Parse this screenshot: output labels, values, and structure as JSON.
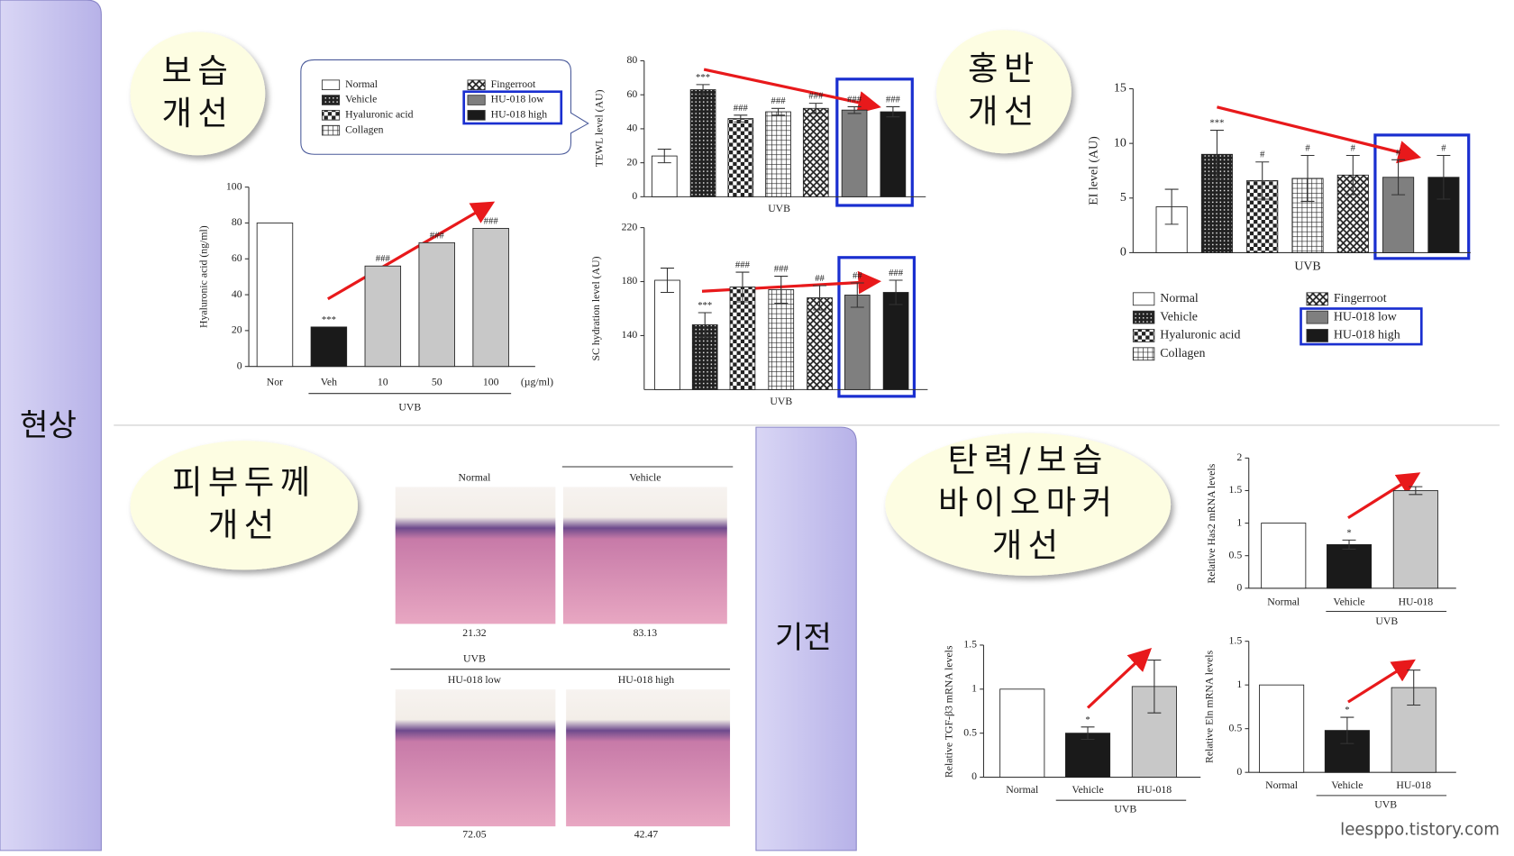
{
  "side_labels": [
    "현상",
    "기전"
  ],
  "bubbles": [
    {
      "lines": [
        "보습",
        "개선"
      ]
    },
    {
      "lines": [
        "홍반",
        "개선"
      ]
    },
    {
      "lines": [
        "피부두께",
        "개선"
      ]
    },
    {
      "lines": [
        "탄력/보습",
        "바이오마커",
        "개선"
      ]
    }
  ],
  "legends": [
    {
      "items": [
        {
          "name": "Normal",
          "fill": "white"
        },
        {
          "name": "Vehicle",
          "fill": "dense"
        },
        {
          "name": "Hyaluronic acid",
          "fill": "check"
        },
        {
          "name": "Collagen",
          "fill": "grid"
        },
        {
          "name": "Fingerroot",
          "fill": "cross"
        },
        {
          "name": "HU-018 low",
          "fill": "#7f7f7f"
        },
        {
          "name": "HU-018 high",
          "fill": "#1a1a1a"
        }
      ]
    },
    {
      "items": [
        {
          "name": "Normal",
          "fill": "white"
        },
        {
          "name": "Vehicle",
          "fill": "dense"
        },
        {
          "name": "Hyaluronic acid",
          "fill": "check"
        },
        {
          "name": "Collagen",
          "fill": "grid"
        },
        {
          "name": "Fingerroot",
          "fill": "cross"
        },
        {
          "name": "HU-018 low",
          "fill": "#7f7f7f"
        },
        {
          "name": "HU-018 high",
          "fill": "#1a1a1a"
        }
      ]
    }
  ],
  "histology": {
    "labels": [
      "Normal",
      "Vehicle",
      "UVB",
      "HU-018 low",
      "HU-018 high"
    ],
    "scores": [
      "21.32",
      "83.13",
      "72.05",
      "42.47"
    ]
  },
  "watermark": "leesppo.tistory.com",
  "chart_data": [
    {
      "type": "bar",
      "y_label": "Hyaluronic acid (ng/ml)",
      "x_label": "UVB",
      "x_unit": "(µg/ml)",
      "categories": [
        "Nor",
        "Veh",
        "10",
        "50",
        "100"
      ],
      "values": [
        80,
        22,
        56,
        69,
        77
      ],
      "errors": null,
      "annotations": [
        null,
        "***",
        "###",
        "###",
        "###"
      ],
      "fills": [
        "white",
        "#1a1a1a",
        "#c8c8c8",
        "#c8c8c8",
        "#c8c8c8"
      ],
      "ylim": [
        0,
        100
      ],
      "yticks": [
        0,
        20,
        40,
        60,
        80,
        100
      ]
    },
    {
      "type": "bar",
      "y_label": "TEWL level (AU)",
      "x_label": "UVB",
      "categories": [
        null,
        null,
        null,
        null,
        null,
        null,
        null
      ],
      "values": [
        24,
        63,
        46,
        50,
        52,
        51,
        50
      ],
      "errors": [
        4,
        3,
        2,
        2,
        3,
        2,
        3
      ],
      "annotations": [
        null,
        "***",
        "###",
        "###",
        "###",
        "###",
        "###"
      ],
      "fills": [
        "white",
        "dense",
        "check",
        "grid",
        "cross",
        "#7f7f7f",
        "#1a1a1a"
      ],
      "ylim": [
        0,
        80
      ],
      "yticks": [
        0,
        20,
        40,
        60,
        80
      ]
    },
    {
      "type": "bar",
      "y_label": "SC hydration level (AU)",
      "x_label": "UVB",
      "categories": [
        null,
        null,
        null,
        null,
        null,
        null,
        null
      ],
      "values": [
        181,
        148,
        176,
        174,
        168,
        170,
        172
      ],
      "errors": [
        9,
        9,
        11,
        10,
        9,
        9,
        9
      ],
      "annotations": [
        null,
        "***",
        "###",
        "###",
        "##",
        "##",
        "###"
      ],
      "fills": [
        "white",
        "dense",
        "check",
        "grid",
        "cross",
        "#7f7f7f",
        "#1a1a1a"
      ],
      "ylim": [
        100,
        220
      ],
      "yticks": [
        140,
        180,
        220
      ]
    },
    {
      "type": "bar",
      "y_label": "EI level (AU)",
      "x_label": "UVB",
      "categories": [
        null,
        null,
        null,
        null,
        null,
        null,
        null
      ],
      "values": [
        4.2,
        9,
        6.6,
        6.8,
        7.1,
        6.9,
        6.9
      ],
      "errors": [
        1.6,
        2.2,
        1.7,
        2.1,
        1.8,
        1.6,
        2.0
      ],
      "annotations": [
        null,
        "***",
        "#",
        "#",
        "#",
        "#",
        "#"
      ],
      "fills": [
        "white",
        "dense",
        "check",
        "grid",
        "cross",
        "#7f7f7f",
        "#1a1a1a"
      ],
      "ylim": [
        0,
        15
      ],
      "yticks": [
        0,
        5,
        10,
        15
      ]
    },
    {
      "type": "bar",
      "y_label": "Relative Has2 mRNA levels",
      "x_label": "UVB",
      "categories": [
        "Normal",
        "Vehicle",
        "HU-018"
      ],
      "values": [
        1,
        0.67,
        1.5
      ],
      "errors": [
        0,
        0.07,
        0.06
      ],
      "annotations": [
        null,
        "*",
        null
      ],
      "fills": [
        "white",
        "#1a1a1a",
        "#c8c8c8"
      ],
      "ylim": [
        0,
        2
      ],
      "yticks": [
        0,
        0.5,
        1,
        1.5,
        2
      ]
    },
    {
      "type": "bar",
      "y_label": "Relative TGF-β3 mRNA levels",
      "x_label": "UVB",
      "categories": [
        "Normal",
        "Vehicle",
        "HU-018"
      ],
      "values": [
        1,
        0.5,
        1.03
      ],
      "errors": [
        0,
        0.07,
        0.3
      ],
      "annotations": [
        null,
        "*",
        null
      ],
      "fills": [
        "white",
        "#1a1a1a",
        "#c8c8c8"
      ],
      "ylim": [
        0,
        1.5
      ],
      "yticks": [
        0,
        0.5,
        1,
        1.5
      ]
    },
    {
      "type": "bar",
      "y_label": "Relative Eln mRNA levels",
      "x_label": "UVB",
      "categories": [
        "Normal",
        "Vehicle",
        "HU-018"
      ],
      "values": [
        1,
        0.48,
        0.97
      ],
      "errors": [
        0,
        0.15,
        0.2
      ],
      "annotations": [
        null,
        "*",
        null
      ],
      "fills": [
        "white",
        "#1a1a1a",
        "#c8c8c8"
      ],
      "ylim": [
        0,
        1.5
      ],
      "yticks": [
        0,
        0.5,
        1,
        1.5
      ]
    }
  ]
}
